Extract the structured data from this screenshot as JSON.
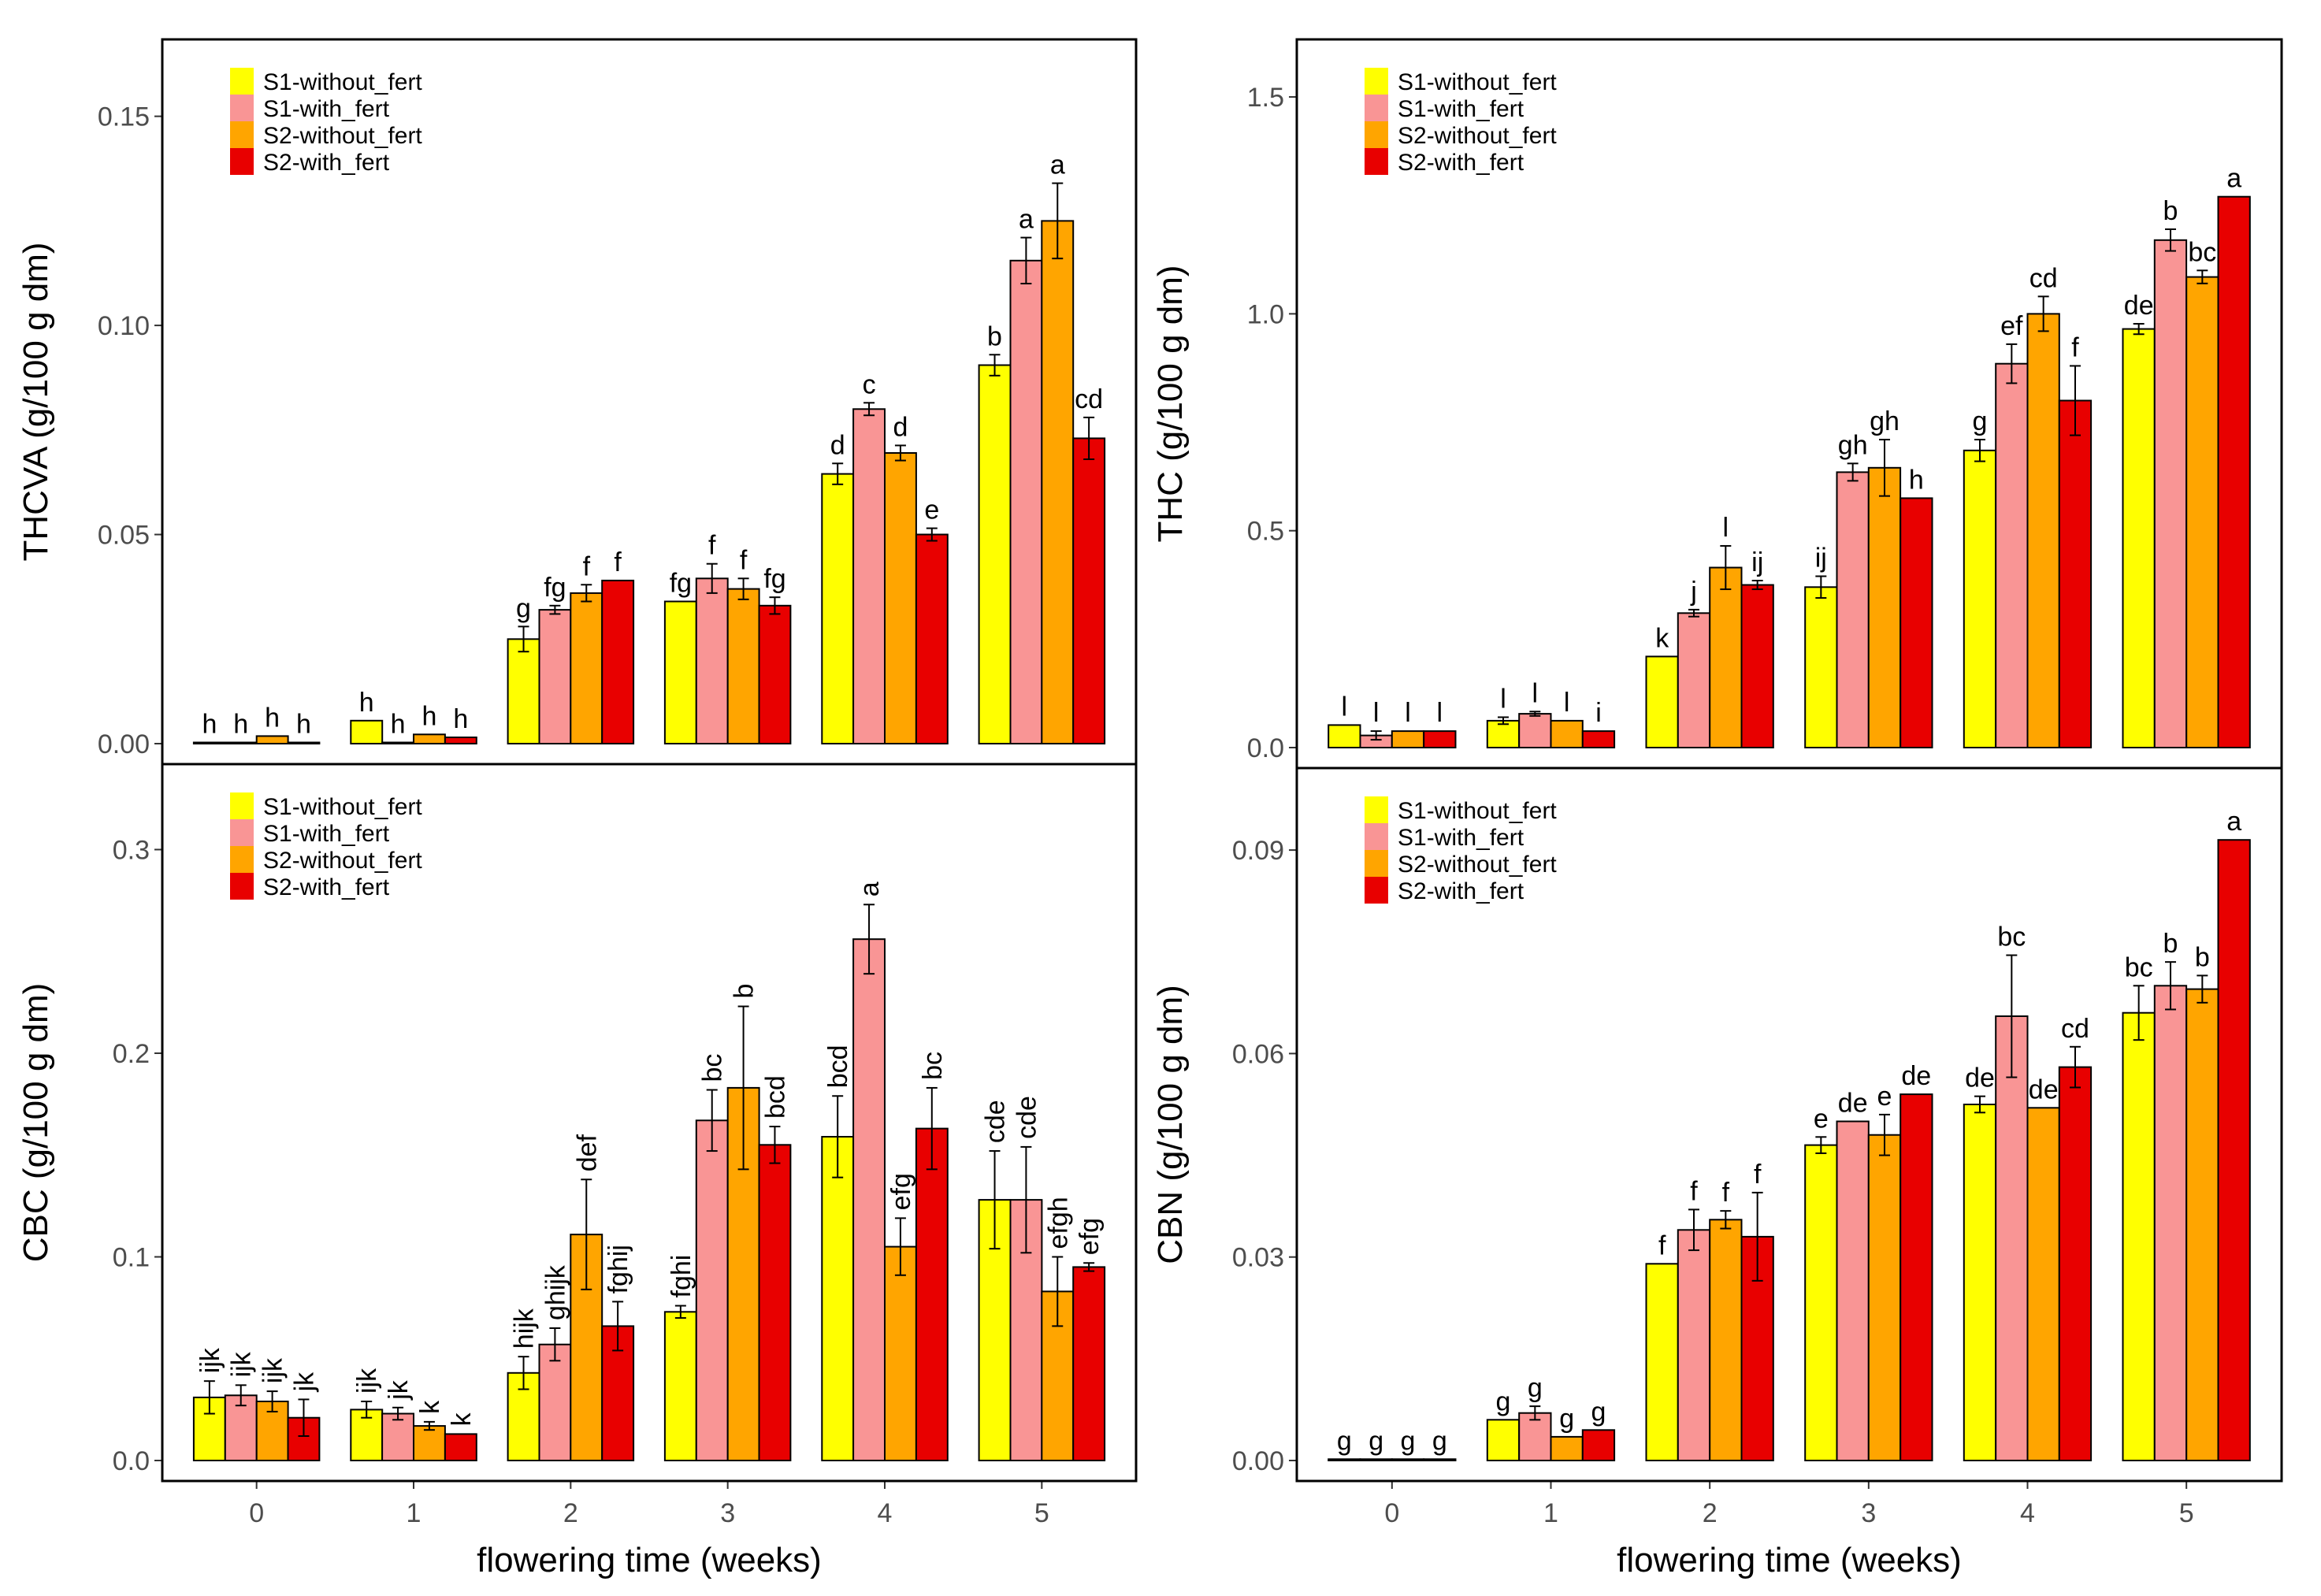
{
  "colors": {
    "S1-without_fert": "#FFFF00",
    "S1-with_fert": "#F99595",
    "S2-without_fert": "#FFA500",
    "S2-with_fert": "#E80000",
    "axis": "#000000",
    "tick_text": "#4D4D4D"
  },
  "chart_data": [
    {
      "type": "bar",
      "ylabel": "THCVA (g/100 g dm)",
      "xlabel": "",
      "ylim": [
        0,
        0.165
      ],
      "yticks": [
        0.0,
        0.05,
        0.1,
        0.15
      ],
      "ytick_labels": [
        "0.00",
        "0.05",
        "0.10",
        "0.15"
      ],
      "categories": [
        "0",
        "1",
        "2",
        "3",
        "4",
        "5"
      ],
      "show_x_tick_labels": false,
      "legend_position": "top-left",
      "series": [
        {
          "name": "S1-without_fert",
          "values": [
            0.0002,
            0.0055,
            0.025,
            0.034,
            0.0645,
            0.0905
          ],
          "errors": [
            0,
            0,
            0.003,
            0,
            0.0025,
            0.0025
          ],
          "letters": [
            "h",
            "h",
            "g",
            "fg",
            "d",
            "b"
          ]
        },
        {
          "name": "S1-with_fert",
          "values": [
            0.0002,
            0.0002,
            0.032,
            0.0395,
            0.08,
            0.1155
          ],
          "errors": [
            0,
            0,
            0.001,
            0.0035,
            0.0015,
            0.0055
          ],
          "letters": [
            "h",
            "h",
            "fg",
            "f",
            "c",
            "a"
          ]
        },
        {
          "name": "S2-without_fert",
          "values": [
            0.0018,
            0.0022,
            0.036,
            0.037,
            0.0695,
            0.125
          ],
          "errors": [
            0,
            0,
            0.002,
            0.0025,
            0.0018,
            0.009
          ],
          "letters": [
            "h",
            "h",
            "f",
            "f",
            "d",
            "a"
          ]
        },
        {
          "name": "S2-with_fert",
          "values": [
            0.0002,
            0.0015,
            0.039,
            0.033,
            0.05,
            0.073
          ],
          "errors": [
            0,
            0,
            0,
            0.002,
            0.0015,
            0.005
          ],
          "letters": [
            "h",
            "h",
            "f",
            "fg",
            "e",
            "cd"
          ]
        }
      ]
    },
    {
      "type": "bar",
      "ylabel": "THC (g/100 g dm)",
      "xlabel": "",
      "ylim": [
        0,
        1.6
      ],
      "yticks": [
        0.0,
        0.5,
        1.0,
        1.5
      ],
      "ytick_labels": [
        "0.0",
        "0.5",
        "1.0",
        "1.5"
      ],
      "categories": [
        "0",
        "1",
        "2",
        "3",
        "4",
        "5"
      ],
      "show_x_tick_labels": false,
      "legend_position": "top-left",
      "series": [
        {
          "name": "S1-without_fert",
          "values": [
            0.052,
            0.062,
            0.21,
            0.37,
            0.685,
            0.965
          ],
          "errors": [
            0,
            0.008,
            0,
            0.025,
            0.025,
            0.012
          ],
          "letters": [
            "l",
            "l",
            "k",
            "ij",
            "g",
            "de"
          ]
        },
        {
          "name": "S1-with_fert",
          "values": [
            0.028,
            0.078,
            0.31,
            0.635,
            0.885,
            1.17
          ],
          "errors": [
            0.01,
            0.005,
            0.008,
            0.02,
            0.045,
            0.025
          ],
          "letters": [
            "l",
            "l",
            "j",
            "gh",
            "ef",
            "b"
          ]
        },
        {
          "name": "S2-without_fert",
          "values": [
            0.038,
            0.062,
            0.415,
            0.645,
            1.0,
            1.085
          ],
          "errors": [
            0,
            0,
            0.05,
            0.065,
            0.04,
            0.015
          ],
          "letters": [
            "l",
            "l",
            "l",
            "gh",
            "cd",
            "bc"
          ]
        },
        {
          "name": "S2-with_fert",
          "values": [
            0.038,
            0.038,
            0.375,
            0.575,
            0.8,
            1.27
          ],
          "errors": [
            0,
            0,
            0.01,
            0,
            0.08,
            0
          ],
          "letters": [
            "l",
            "i",
            "ij",
            "h",
            "f",
            "a"
          ]
        }
      ]
    },
    {
      "type": "bar",
      "ylabel": "CBC (g/100 g dm)",
      "xlabel": "flowering time (weeks)",
      "ylim": [
        0,
        0.335
      ],
      "yticks": [
        0.0,
        0.1,
        0.2,
        0.3
      ],
      "ytick_labels": [
        "0.0",
        "0.1",
        "0.2",
        "0.3"
      ],
      "categories": [
        "0",
        "1",
        "2",
        "3",
        "4",
        "5"
      ],
      "show_x_tick_labels": true,
      "legend_position": "top-left",
      "series": [
        {
          "name": "S1-without_fert",
          "values": [
            0.031,
            0.025,
            0.043,
            0.073,
            0.159,
            0.128
          ],
          "errors": [
            0.008,
            0.004,
            0.008,
            0.003,
            0.02,
            0.024
          ],
          "letters": [
            "ijk",
            "ijk",
            "hijk",
            "fghi",
            "bcd",
            "cde"
          ]
        },
        {
          "name": "S1-with_fert",
          "values": [
            0.032,
            0.023,
            0.057,
            0.167,
            0.256,
            0.128
          ],
          "errors": [
            0.005,
            0.003,
            0.008,
            0.015,
            0.017,
            0.026
          ],
          "letters": [
            "ijk",
            "jk",
            "ghijk",
            "bc",
            "a",
            "cde"
          ]
        },
        {
          "name": "S2-without_fert",
          "values": [
            0.029,
            0.017,
            0.111,
            0.183,
            0.105,
            0.083
          ],
          "errors": [
            0.005,
            0.002,
            0.027,
            0.04,
            0.014,
            0.017
          ],
          "letters": [
            "ijk",
            "k",
            "def",
            "b",
            "efg",
            "efgh"
          ]
        },
        {
          "name": "S2-with_fert",
          "values": [
            0.021,
            0.013,
            0.066,
            0.155,
            0.163,
            0.095
          ],
          "errors": [
            0.009,
            0,
            0.012,
            0.009,
            0.02,
            0.002
          ],
          "letters": [
            "jk",
            "k",
            "fghij",
            "bcd",
            "bc",
            "efg"
          ]
        }
      ]
    },
    {
      "type": "bar",
      "ylabel": "CBN (g/100 g dm)",
      "xlabel": "flowering time (weeks)",
      "ylim": [
        0,
        0.1
      ],
      "yticks": [
        0.0,
        0.03,
        0.06,
        0.09
      ],
      "ytick_labels": [
        "0.00",
        "0.03",
        "0.06",
        "0.09"
      ],
      "categories": [
        "0",
        "1",
        "2",
        "3",
        "4",
        "5"
      ],
      "show_x_tick_labels": true,
      "legend_position": "top-left",
      "series": [
        {
          "name": "S1-without_fert",
          "values": [
            0.0002,
            0.006,
            0.029,
            0.0465,
            0.0525,
            0.066
          ],
          "errors": [
            0,
            0,
            0,
            0.0012,
            0.0012,
            0.004
          ],
          "letters": [
            "g",
            "g",
            "f",
            "e",
            "de",
            "bc"
          ]
        },
        {
          "name": "S1-with_fert",
          "values": [
            0.0002,
            0.007,
            0.034,
            0.05,
            0.0655,
            0.07
          ],
          "errors": [
            0,
            0.001,
            0.003,
            0,
            0.009,
            0.0035
          ],
          "letters": [
            "g",
            "g",
            "f",
            "de",
            "bc",
            "b"
          ]
        },
        {
          "name": "S2-without_fert",
          "values": [
            0.0002,
            0.0035,
            0.0355,
            0.048,
            0.052,
            0.0695
          ],
          "errors": [
            0,
            0,
            0.0013,
            0.003,
            0,
            0.002
          ],
          "letters": [
            "g",
            "g",
            "f",
            "e",
            "de",
            "b"
          ]
        },
        {
          "name": "S2-with_fert",
          "values": [
            0.0002,
            0.0045,
            0.033,
            0.054,
            0.058,
            0.0915
          ],
          "errors": [
            0,
            0,
            0.0065,
            0,
            0.003,
            0
          ],
          "letters": [
            "g",
            "g",
            "f",
            "de",
            "cd",
            "a"
          ]
        }
      ]
    }
  ]
}
